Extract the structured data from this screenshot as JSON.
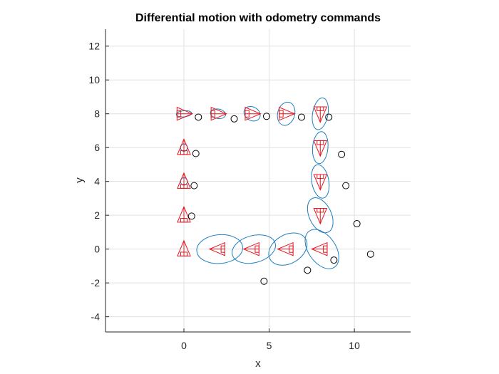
{
  "chart_data": {
    "type": "scatter",
    "title": "Differential motion with odometry commands",
    "xlabel": "x",
    "ylabel": "y",
    "xlim": [
      -4.6,
      13.3
    ],
    "ylim": [
      -4.9,
      13
    ],
    "xticks": [
      0,
      5,
      10
    ],
    "xtick_labels": [
      "0",
      "5",
      "10"
    ],
    "yticks": [
      -4,
      -2,
      0,
      2,
      4,
      6,
      8,
      10,
      12
    ],
    "ytick_labels": [
      "-4",
      "-2",
      "0",
      "2",
      "4",
      "6",
      "8",
      "10",
      "12"
    ],
    "grid": true,
    "legend": "none",
    "colors": {
      "pose": "#e8141e",
      "ellipse": "#1f7fc0",
      "measurement": "#000000",
      "grid": "#e0e0e0",
      "axis": "#262626"
    },
    "poses": [
      {
        "x": 0,
        "y": 0,
        "theta_deg": 90
      },
      {
        "x": 0,
        "y": 2,
        "theta_deg": 90
      },
      {
        "x": 0,
        "y": 4,
        "theta_deg": 90
      },
      {
        "x": 0,
        "y": 6,
        "theta_deg": 90
      },
      {
        "x": 0,
        "y": 8,
        "theta_deg": 0
      },
      {
        "x": 2,
        "y": 8,
        "theta_deg": 0
      },
      {
        "x": 4,
        "y": 8,
        "theta_deg": 0
      },
      {
        "x": 6,
        "y": 8,
        "theta_deg": 0
      },
      {
        "x": 8,
        "y": 8,
        "theta_deg": -90
      },
      {
        "x": 8,
        "y": 6,
        "theta_deg": -90
      },
      {
        "x": 8,
        "y": 4,
        "theta_deg": -90
      },
      {
        "x": 8,
        "y": 2,
        "theta_deg": -90
      },
      {
        "x": 8,
        "y": 0,
        "theta_deg": 180
      },
      {
        "x": 6,
        "y": 0,
        "theta_deg": 180
      },
      {
        "x": 4,
        "y": 0,
        "theta_deg": 180
      },
      {
        "x": 2,
        "y": 0,
        "theta_deg": 180
      }
    ],
    "covariance_ellipses": [
      {
        "cx": 0,
        "cy": 6,
        "rx": 0.2,
        "ry": 0.22,
        "angle_deg": 0
      },
      {
        "cx": 0,
        "cy": 4,
        "rx": 0.2,
        "ry": 0.22,
        "angle_deg": 0
      },
      {
        "cx": 0,
        "cy": 8,
        "rx": 0.45,
        "ry": 0.18,
        "angle_deg": 5
      },
      {
        "cx": 2,
        "cy": 8,
        "rx": 0.45,
        "ry": 0.28,
        "angle_deg": -10
      },
      {
        "cx": 4,
        "cy": 8,
        "rx": 0.5,
        "ry": 0.4,
        "angle_deg": -30
      },
      {
        "cx": 6,
        "cy": 8,
        "rx": 0.5,
        "ry": 0.7,
        "angle_deg": -15
      },
      {
        "cx": 8,
        "cy": 8,
        "rx": 0.45,
        "ry": 0.95,
        "angle_deg": -10
      },
      {
        "cx": 8,
        "cy": 6,
        "rx": 0.45,
        "ry": 0.95,
        "angle_deg": -5
      },
      {
        "cx": 8,
        "cy": 4,
        "rx": 0.5,
        "ry": 1.0,
        "angle_deg": 10
      },
      {
        "cx": 8,
        "cy": 2,
        "rx": 0.65,
        "ry": 1.1,
        "angle_deg": 25
      },
      {
        "cx": 8.1,
        "cy": 0,
        "rx": 0.8,
        "ry": 1.3,
        "angle_deg": 35
      },
      {
        "cx": 6.1,
        "cy": 0,
        "rx": 1.2,
        "ry": 0.85,
        "angle_deg": 30
      },
      {
        "cx": 4.1,
        "cy": 0,
        "rx": 1.3,
        "ry": 0.8,
        "angle_deg": 15
      },
      {
        "cx": 2.1,
        "cy": 0,
        "rx": 1.35,
        "ry": 0.85,
        "angle_deg": 5
      }
    ],
    "measurements": [
      {
        "x": 0.85,
        "y": 7.8
      },
      {
        "x": 2.95,
        "y": 7.7
      },
      {
        "x": 4.85,
        "y": 7.85
      },
      {
        "x": 6.9,
        "y": 7.8
      },
      {
        "x": 8.5,
        "y": 7.8
      },
      {
        "x": 0.7,
        "y": 5.65
      },
      {
        "x": 9.25,
        "y": 5.6
      },
      {
        "x": 0.6,
        "y": 3.75
      },
      {
        "x": 9.5,
        "y": 3.75
      },
      {
        "x": 0.45,
        "y": 1.95
      },
      {
        "x": 10.15,
        "y": 1.5
      },
      {
        "x": 10.95,
        "y": -0.3
      },
      {
        "x": 8.8,
        "y": -0.65
      },
      {
        "x": 7.25,
        "y": -1.25
      },
      {
        "x": 4.7,
        "y": -1.9
      }
    ]
  }
}
